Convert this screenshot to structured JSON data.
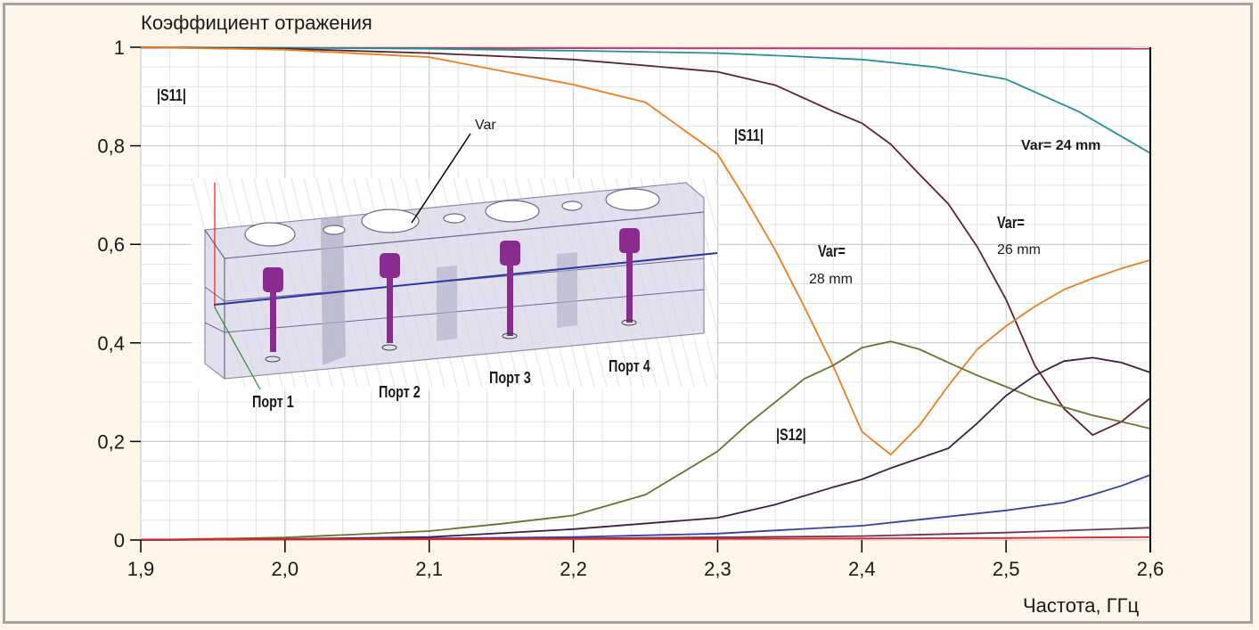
{
  "chart_data": {
    "type": "line",
    "title": "Коэффициент отражения",
    "xlabel": "Частота, ГГц",
    "ylabel": "Коэффициент отражения",
    "xlim": [
      1.9,
      2.6
    ],
    "ylim": [
      0,
      1
    ],
    "x_ticks": [
      "1,9",
      "2,0",
      "2,1",
      "2,2",
      "2,3",
      "2,4",
      "2,5",
      "2,6"
    ],
    "x_tick_values": [
      1.9,
      2.0,
      2.1,
      2.2,
      2.3,
      2.4,
      2.5,
      2.6
    ],
    "y_ticks": [
      "0",
      "0,2",
      "0,4",
      "0,6",
      "0,8",
      "1"
    ],
    "y_tick_values": [
      0,
      0.2,
      0.4,
      0.6,
      0.8,
      1.0
    ],
    "grid": true,
    "annotations": {
      "s11_left": "|S11|",
      "s11_mid": "|S11|",
      "s12": "|S12|",
      "var24": "Var= 24 mm",
      "var26_a": "Var=",
      "var26_b": "26 mm",
      "var28_a": "Var=",
      "var28_b": "28 mm",
      "var_arrow": "Var"
    },
    "inset": {
      "ports": [
        "Порт 1",
        "Порт 2",
        "Порт 3",
        "Порт 4"
      ]
    },
    "series": [
      {
        "name": "|S11| top (magenta)",
        "color": "#c8336e",
        "x": [
          1.9,
          2.6
        ],
        "y": [
          0.999,
          0.997
        ]
      },
      {
        "name": "|S11| Var=24 mm",
        "color": "#22909a",
        "x": [
          1.9,
          2.0,
          2.1,
          2.2,
          2.3,
          2.35,
          2.4,
          2.45,
          2.5,
          2.55,
          2.6
        ],
        "y": [
          1.0,
          0.999,
          0.997,
          0.993,
          0.988,
          0.982,
          0.975,
          0.96,
          0.935,
          0.87,
          0.785
        ]
      },
      {
        "name": "|S11| Var=26 mm",
        "color": "#5b2331",
        "x": [
          1.9,
          2.0,
          2.1,
          2.2,
          2.25,
          2.3,
          2.34,
          2.38,
          2.4,
          2.42,
          2.44,
          2.46,
          2.48,
          2.5,
          2.52,
          2.54,
          2.56,
          2.58,
          2.6
        ],
        "y": [
          1.0,
          0.997,
          0.988,
          0.975,
          0.963,
          0.95,
          0.923,
          0.87,
          0.846,
          0.803,
          0.742,
          0.682,
          0.595,
          0.488,
          0.354,
          0.267,
          0.213,
          0.24,
          0.288
        ]
      },
      {
        "name": "|S11| Var=28 mm",
        "color": "#f07d1c",
        "x": [
          1.9,
          2.0,
          2.1,
          2.2,
          2.25,
          2.3,
          2.32,
          2.34,
          2.36,
          2.38,
          2.4,
          2.42,
          2.44,
          2.46,
          2.48,
          2.5,
          2.52,
          2.54,
          2.56,
          2.58,
          2.6
        ],
        "y": [
          1.0,
          0.995,
          0.98,
          0.924,
          0.888,
          0.783,
          0.689,
          0.588,
          0.474,
          0.354,
          0.22,
          0.173,
          0.233,
          0.313,
          0.387,
          0.434,
          0.474,
          0.508,
          0.531,
          0.551,
          0.568
        ]
      },
      {
        "name": "|S12| Var=28 mm",
        "color": "#6e7030",
        "x": [
          1.9,
          2.0,
          2.1,
          2.15,
          2.2,
          2.25,
          2.3,
          2.32,
          2.34,
          2.36,
          2.38,
          2.4,
          2.42,
          2.44,
          2.46,
          2.48,
          2.5,
          2.52,
          2.54,
          2.56,
          2.58,
          2.6
        ],
        "y": [
          0.0,
          0.005,
          0.018,
          0.033,
          0.05,
          0.092,
          0.18,
          0.233,
          0.28,
          0.327,
          0.354,
          0.39,
          0.403,
          0.387,
          0.36,
          0.334,
          0.311,
          0.287,
          0.27,
          0.253,
          0.24,
          0.226
        ]
      },
      {
        "name": "|S12| Var=26 mm",
        "color": "#3b1f48",
        "x": [
          1.9,
          2.0,
          2.1,
          2.2,
          2.3,
          2.34,
          2.38,
          2.4,
          2.42,
          2.46,
          2.48,
          2.5,
          2.52,
          2.54,
          2.56,
          2.58,
          2.6
        ],
        "y": [
          0.0,
          0.002,
          0.006,
          0.022,
          0.045,
          0.072,
          0.107,
          0.123,
          0.146,
          0.186,
          0.237,
          0.293,
          0.334,
          0.363,
          0.37,
          0.36,
          0.34
        ]
      },
      {
        "name": "|S12| Var=24 mm",
        "color": "#3a40a3",
        "x": [
          1.9,
          2.1,
          2.2,
          2.3,
          2.4,
          2.5,
          2.54,
          2.56,
          2.58,
          2.6
        ],
        "y": [
          0.0,
          0.003,
          0.006,
          0.013,
          0.029,
          0.06,
          0.076,
          0.092,
          0.11,
          0.132
        ]
      },
      {
        "name": "low maroon",
        "color": "#6a3452",
        "x": [
          1.9,
          2.2,
          2.4,
          2.5,
          2.6
        ],
        "y": [
          0.0,
          0.003,
          0.008,
          0.015,
          0.025
        ]
      },
      {
        "name": "low red",
        "color": "#e32222",
        "x": [
          1.9,
          2.2,
          2.4,
          2.5,
          2.6
        ],
        "y": [
          0.001,
          0.002,
          0.003,
          0.004,
          0.006
        ]
      }
    ]
  }
}
